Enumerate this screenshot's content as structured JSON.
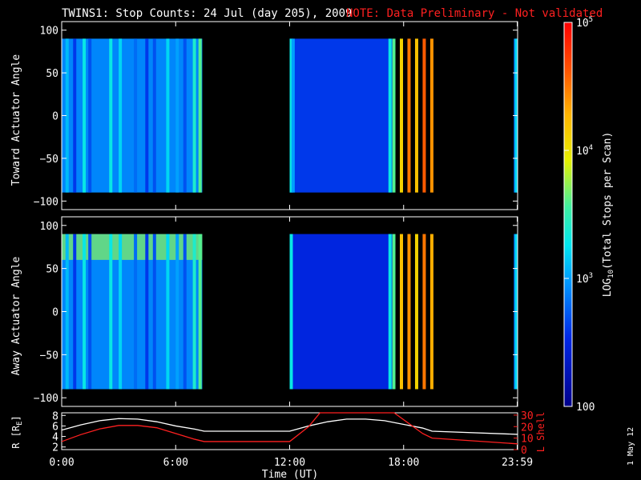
{
  "title": {
    "main": "TWINS1: Stop Counts: 24 Jul (day 205), 2009",
    "note": "NOTE: Data Preliminary - Not validated",
    "note_color": "#ff2020"
  },
  "colorbar": {
    "label": "LOG",
    "label_sub": "10",
    "label_rest": "(Total Stops per Scan)",
    "tick_labels": [
      "100",
      "10",
      "10",
      "10"
    ],
    "tick_exponents": [
      "",
      "3",
      "4",
      "5"
    ],
    "range": [
      100,
      100000
    ],
    "scale": "log"
  },
  "stamp": "1 May 12",
  "chart_data": [
    {
      "type": "heatmap",
      "ylabel": "Toward Actuator Angle",
      "yticks": [
        "100",
        "50",
        "0",
        "-50",
        "-100"
      ],
      "ylim": [
        -110,
        110
      ],
      "xlim": [
        0,
        24
      ],
      "data_y_range": [
        -90,
        90
      ],
      "scale": "log",
      "segments": [
        {
          "x": [
            0,
            7.4
          ],
          "level": 2.9,
          "stripes": [
            [
              0.2,
              3.1
            ],
            [
              0.6,
              2.6
            ],
            [
              1.1,
              3.3
            ],
            [
              1.4,
              2.7
            ],
            [
              2.5,
              3.3
            ],
            [
              3.0,
              3.2
            ],
            [
              3.8,
              2.8
            ],
            [
              4.4,
              2.6
            ],
            [
              4.8,
              2.7
            ],
            [
              5.5,
              3.2
            ],
            [
              6.0,
              3.0
            ],
            [
              6.4,
              2.7
            ],
            [
              6.9,
              3.4
            ],
            [
              7.2,
              3.6
            ]
          ]
        },
        {
          "x": [
            12,
            17.4
          ],
          "level": 2.6,
          "stripes": [
            [
              12.0,
              3.3
            ],
            [
              12.1,
              3.0
            ],
            [
              17.2,
              3.3
            ],
            [
              17.4,
              3.6
            ],
            [
              17.8,
              4.1
            ],
            [
              18.2,
              4.5
            ],
            [
              18.6,
              4.2
            ],
            [
              19.0,
              4.6
            ],
            [
              19.4,
              4.4
            ]
          ]
        },
        {
          "x": [
            23.8,
            24
          ],
          "level": 2.8,
          "stripes": [
            [
              23.85,
              3.2
            ]
          ]
        }
      ]
    },
    {
      "type": "heatmap",
      "ylabel": "Away Actuator Angle",
      "yticks": [
        "100",
        "50",
        "0",
        "-50",
        "-100"
      ],
      "ylim": [
        -110,
        110
      ],
      "xlim": [
        0,
        24
      ],
      "data_y_range": [
        -90,
        90
      ],
      "scale": "log",
      "segments": [
        {
          "x": [
            0,
            7.4
          ],
          "level": 2.9,
          "stripes": [
            [
              0.2,
              3.1
            ],
            [
              0.6,
              2.6
            ],
            [
              1.1,
              3.3
            ],
            [
              1.4,
              2.7
            ],
            [
              2.5,
              3.3
            ],
            [
              3.0,
              3.2
            ],
            [
              3.8,
              2.8
            ],
            [
              4.4,
              2.6
            ],
            [
              4.8,
              2.7
            ],
            [
              5.5,
              3.2
            ],
            [
              6.0,
              3.0
            ],
            [
              6.4,
              2.7
            ],
            [
              6.9,
              3.4
            ],
            [
              7.2,
              3.6
            ]
          ],
          "band": {
            "y": [
              60,
              90
            ],
            "level": 3.7
          }
        },
        {
          "x": [
            12,
            17.4
          ],
          "level": 2.5,
          "stripes": [
            [
              12.0,
              3.3
            ],
            [
              17.2,
              3.3
            ],
            [
              17.4,
              3.6
            ],
            [
              17.8,
              4.2
            ],
            [
              18.2,
              4.4
            ],
            [
              18.6,
              4.1
            ],
            [
              19.0,
              4.5
            ],
            [
              19.4,
              4.3
            ]
          ]
        },
        {
          "x": [
            23.8,
            24
          ],
          "level": 2.8,
          "stripes": [
            [
              23.85,
              3.2
            ]
          ]
        }
      ]
    },
    {
      "type": "line",
      "ylabel_left": "R [R",
      "ylabel_left_sub": "E",
      "ylabel_left_end": "]",
      "ylabel_right": "L Shell",
      "xlabel": "Time (UT)",
      "xticks": [
        "0:00",
        "6:00",
        "12:00",
        "18:00",
        "23:59"
      ],
      "xtick_hours": [
        0,
        6,
        12,
        18,
        23.98
      ],
      "yticks_left": [
        "8",
        "6",
        "4",
        "2"
      ],
      "ylim_left": [
        1.5,
        8.5
      ],
      "yticks_right": [
        "30",
        "20",
        "10",
        "0"
      ],
      "ylim_right": [
        0,
        32
      ],
      "series": [
        {
          "axis": "left",
          "color": "#ffffff",
          "x": [
            0,
            1,
            2,
            3,
            4,
            5,
            6,
            7,
            7.5,
            12,
            13,
            14,
            15,
            16,
            17,
            18,
            19,
            19.5,
            24
          ],
          "y": [
            5.2,
            6.2,
            7.0,
            7.4,
            7.3,
            6.8,
            6.0,
            5.4,
            5.0,
            5.0,
            6.0,
            6.8,
            7.3,
            7.3,
            7.0,
            6.3,
            5.6,
            5.0,
            4.4
          ]
        },
        {
          "axis": "right",
          "color": "#ff2020",
          "x": [
            0,
            1,
            2,
            3,
            4,
            5,
            6,
            7,
            7.5,
            12,
            13,
            13.6,
            17.5,
            18,
            19,
            19.5,
            24
          ],
          "y": [
            7,
            13,
            18,
            21,
            21,
            19,
            14,
            9,
            7,
            7,
            20,
            32,
            32,
            26,
            14,
            10,
            5
          ]
        }
      ]
    }
  ]
}
